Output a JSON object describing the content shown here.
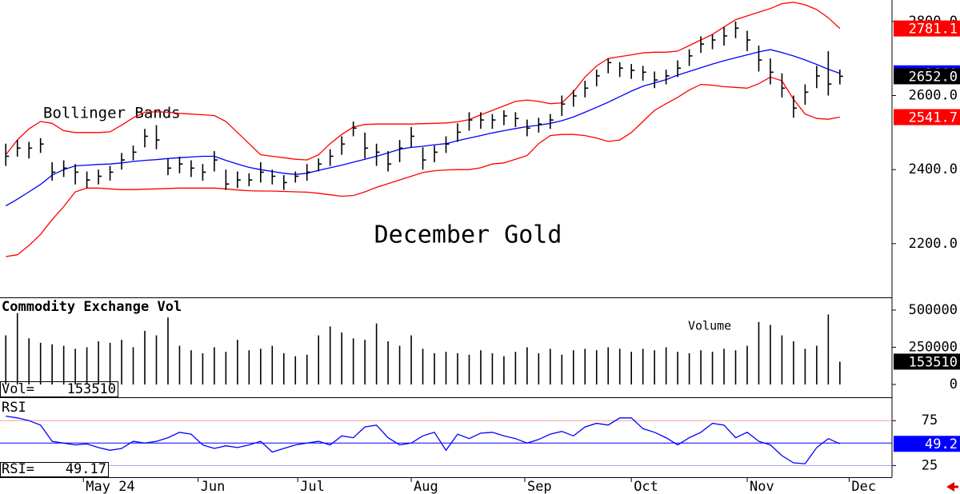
{
  "chart_data": [
    {
      "type": "hlc",
      "title": "December Gold",
      "annotation": "Bollinger Bands",
      "bar_color": "#000000",
      "xlim": [
        -0.5,
        76.5
      ],
      "ylim": [
        2055,
        2858
      ],
      "yticks": [
        {
          "value": 2800,
          "label": "2800.0"
        },
        {
          "value": 2600,
          "label": "2600.0"
        },
        {
          "value": 2400,
          "label": "2400.0"
        },
        {
          "value": 2200,
          "label": "2200.0"
        }
      ],
      "high": [
        2470,
        2480,
        2475,
        2485,
        2420,
        2425,
        2415,
        2395,
        2400,
        2410,
        2445,
        2465,
        2510,
        2520,
        2430,
        2435,
        2425,
        2415,
        2450,
        2400,
        2395,
        2390,
        2420,
        2400,
        2385,
        2395,
        2415,
        2430,
        2455,
        2490,
        2530,
        2500,
        2470,
        2450,
        2480,
        2515,
        2460,
        2465,
        2490,
        2525,
        2555,
        2555,
        2550,
        2560,
        2555,
        2535,
        2540,
        2550,
        2600,
        2615,
        2640,
        2670,
        2700,
        2690,
        2685,
        2680,
        2665,
        2670,
        2695,
        2725,
        2760,
        2765,
        2785,
        2800,
        2775,
        2735,
        2700,
        2660,
        2600,
        2630,
        2680,
        2720,
        2670
      ],
      "low": [
        2410,
        2435,
        2430,
        2445,
        2370,
        2380,
        2360,
        2350,
        2360,
        2370,
        2400,
        2425,
        2460,
        2455,
        2385,
        2390,
        2380,
        2370,
        2395,
        2345,
        2350,
        2355,
        2365,
        2360,
        2345,
        2365,
        2370,
        2395,
        2410,
        2440,
        2490,
        2430,
        2410,
        2395,
        2420,
        2460,
        2400,
        2420,
        2445,
        2475,
        2505,
        2510,
        2510,
        2520,
        2515,
        2490,
        2500,
        2510,
        2545,
        2570,
        2595,
        2625,
        2660,
        2650,
        2645,
        2640,
        2620,
        2630,
        2650,
        2680,
        2715,
        2725,
        2735,
        2755,
        2720,
        2665,
        2630,
        2595,
        2540,
        2575,
        2620,
        2600,
        2630
      ],
      "values": [
        2436,
        2458,
        2458,
        2469,
        2393,
        2404,
        2393,
        2372,
        2382,
        2393,
        2426,
        2447,
        2490,
        2480,
        2404,
        2415,
        2404,
        2393,
        2426,
        2361,
        2372,
        2372,
        2393,
        2382,
        2365,
        2382,
        2393,
        2415,
        2436,
        2469,
        2512,
        2458,
        2447,
        2415,
        2458,
        2490,
        2426,
        2447,
        2469,
        2501,
        2534,
        2534,
        2534,
        2545,
        2538,
        2512,
        2523,
        2534,
        2577,
        2599,
        2620,
        2653,
        2689,
        2674,
        2668,
        2663,
        2642,
        2653,
        2674,
        2707,
        2739,
        2750,
        2761,
        2782,
        2750,
        2696,
        2663,
        2620,
        2566,
        2609,
        2653,
        2631,
        2652
      ],
      "value_labels": [
        null,
        null,
        null,
        null,
        null,
        null,
        null,
        null,
        null,
        null,
        null,
        null,
        null,
        null,
        null,
        null,
        null,
        null,
        null,
        null,
        null,
        null,
        null,
        null,
        null,
        null,
        null,
        null,
        null,
        null,
        null,
        null,
        null,
        null,
        null,
        null,
        null,
        null,
        null,
        null,
        null,
        null,
        null,
        null,
        null,
        null,
        null,
        null,
        null,
        null,
        null,
        null,
        null,
        null,
        null,
        null,
        null,
        null,
        null,
        null,
        null,
        null,
        null,
        null,
        null,
        null,
        null,
        null,
        null,
        null,
        null,
        null,
        "2652.0"
      ],
      "bands": [
        {
          "color": "#ff0000",
          "values": [
            2440,
            2480,
            2510,
            2530,
            2525,
            2505,
            2500,
            2500,
            2500,
            2502,
            2520,
            2540,
            2555,
            2556,
            2555,
            2552,
            2550,
            2548,
            2546,
            2530,
            2500,
            2470,
            2440,
            2436,
            2432,
            2428,
            2426,
            2440,
            2470,
            2495,
            2515,
            2522,
            2523,
            2523,
            2523,
            2523,
            2524,
            2525,
            2526,
            2529,
            2535,
            2548,
            2560,
            2572,
            2584,
            2588,
            2584,
            2578,
            2580,
            2610,
            2650,
            2680,
            2700,
            2705,
            2710,
            2715,
            2717,
            2717,
            2720,
            2735,
            2750,
            2765,
            2785,
            2805,
            2815,
            2825,
            2835,
            2848,
            2852,
            2845,
            2832,
            2810,
            2781.1
          ]
        },
        {
          "color": "#0000ff",
          "values": [
            2302,
            2320,
            2340,
            2360,
            2385,
            2400,
            2410,
            2412,
            2414,
            2415,
            2418,
            2422,
            2425,
            2427,
            2430,
            2432,
            2434,
            2436,
            2436,
            2425,
            2415,
            2406,
            2400,
            2395,
            2390,
            2387,
            2390,
            2398,
            2405,
            2412,
            2420,
            2428,
            2436,
            2445,
            2455,
            2460,
            2463,
            2467,
            2470,
            2478,
            2485,
            2492,
            2499,
            2505,
            2511,
            2516,
            2520,
            2525,
            2532,
            2542,
            2555,
            2568,
            2582,
            2597,
            2612,
            2625,
            2634,
            2643,
            2655,
            2665,
            2675,
            2685,
            2694,
            2702,
            2710,
            2718,
            2724,
            2716,
            2707,
            2696,
            2684,
            2671,
            2660
          ]
        },
        {
          "color": "#ff0000",
          "values": [
            2165,
            2170,
            2195,
            2225,
            2265,
            2300,
            2340,
            2350,
            2350,
            2348,
            2346,
            2346,
            2347,
            2348,
            2349,
            2350,
            2350,
            2350,
            2350,
            2348,
            2345,
            2343,
            2342,
            2342,
            2341,
            2340,
            2339,
            2336,
            2332,
            2328,
            2330,
            2340,
            2352,
            2362,
            2372,
            2382,
            2392,
            2397,
            2399,
            2400,
            2400,
            2405,
            2415,
            2418,
            2428,
            2438,
            2470,
            2492,
            2495,
            2495,
            2492,
            2485,
            2476,
            2480,
            2500,
            2530,
            2560,
            2578,
            2595,
            2615,
            2630,
            2628,
            2624,
            2622,
            2620,
            2632,
            2650,
            2640,
            2590,
            2550,
            2538,
            2536,
            2541.7
          ]
        }
      ]
    },
    {
      "type": "bar",
      "title": "Commodity Exchange Vol",
      "annotation": "Volume",
      "readout_label": "Vol=",
      "color": "#000000",
      "xlim": [
        -0.5,
        76.5
      ],
      "ylim": [
        -86000,
        580000
      ],
      "yticks": [
        500000,
        250000,
        0
      ],
      "values": [
        330000,
        480000,
        310000,
        280000,
        270000,
        260000,
        240000,
        250000,
        290000,
        280000,
        300000,
        250000,
        360000,
        330000,
        450000,
        260000,
        230000,
        210000,
        250000,
        220000,
        300000,
        230000,
        240000,
        260000,
        210000,
        190000,
        200000,
        330000,
        390000,
        350000,
        310000,
        300000,
        410000,
        290000,
        260000,
        330000,
        240000,
        210000,
        220000,
        210000,
        200000,
        230000,
        210000,
        190000,
        220000,
        250000,
        210000,
        240000,
        200000,
        230000,
        240000,
        230000,
        250000,
        240000,
        220000,
        240000,
        230000,
        250000,
        220000,
        210000,
        230000,
        220000,
        240000,
        230000,
        260000,
        420000,
        400000,
        330000,
        290000,
        240000,
        260000,
        470000,
        153510
      ]
    },
    {
      "type": "line",
      "title": "RSI",
      "readout_label": "RSI=",
      "color": "#0000ff",
      "xlim": [
        -0.5,
        76.5
      ],
      "ylim": [
        12,
        101
      ],
      "yticks": [
        75,
        25
      ],
      "reference_lines": [
        {
          "value": 75,
          "color": "#f0a0a0"
        },
        {
          "value": 50,
          "color": "#0000ff"
        },
        {
          "value": 25,
          "color": "#a0a0f0"
        }
      ],
      "xticks": [
        {
          "value": 6.7,
          "label": "May 24"
        },
        {
          "value": 16.6,
          "label": "Jun"
        },
        {
          "value": 25.2,
          "label": "Jul"
        },
        {
          "value": 35,
          "label": "Aug"
        },
        {
          "value": 44.8,
          "label": "Sep"
        },
        {
          "value": 54,
          "label": "Oct"
        },
        {
          "value": 64,
          "label": "Nov"
        },
        {
          "value": 72.8,
          "label": "Dec"
        }
      ],
      "values": [
        80,
        78,
        75,
        70,
        52,
        50,
        48,
        49,
        45,
        42,
        44,
        52,
        50,
        52,
        56,
        62,
        60,
        48,
        44,
        47,
        45,
        48,
        52,
        40,
        44,
        48,
        50,
        52,
        48,
        58,
        56,
        68,
        70,
        56,
        48,
        50,
        58,
        62,
        42,
        60,
        55,
        61,
        62,
        58,
        55,
        50,
        54,
        60,
        63,
        58,
        68,
        72,
        70,
        78,
        78,
        66,
        62,
        56,
        48,
        56,
        62,
        72,
        70,
        56,
        62,
        52,
        48,
        36,
        28,
        27,
        45,
        55,
        49.17
      ],
      "value_labels": [
        null,
        null,
        null,
        null,
        null,
        null,
        null,
        null,
        null,
        null,
        null,
        null,
        null,
        null,
        null,
        null,
        null,
        null,
        null,
        null,
        null,
        null,
        null,
        null,
        null,
        null,
        null,
        null,
        null,
        null,
        null,
        null,
        null,
        null,
        null,
        null,
        null,
        null,
        null,
        null,
        null,
        null,
        null,
        null,
        null,
        null,
        null,
        null,
        null,
        null,
        null,
        null,
        null,
        null,
        null,
        null,
        null,
        null,
        null,
        null,
        null,
        null,
        null,
        null,
        null,
        null,
        null,
        null,
        null,
        null,
        null,
        null,
        "49.2"
      ]
    }
  ]
}
